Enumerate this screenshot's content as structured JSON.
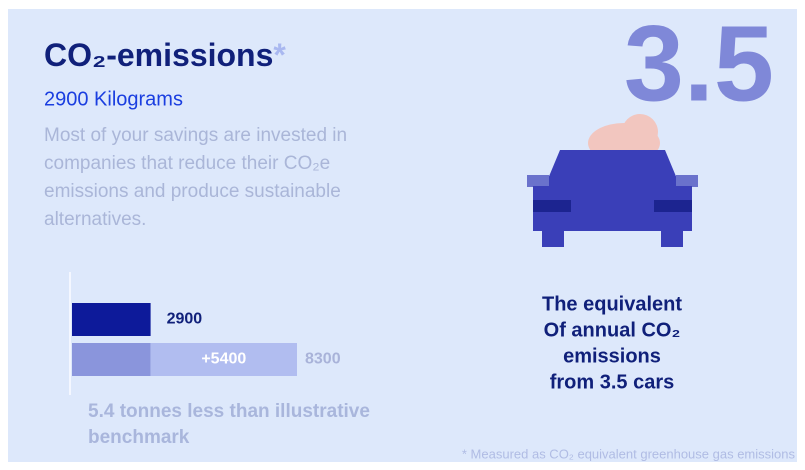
{
  "header": {
    "title": "CO₂-emissions",
    "asterisk": "*",
    "subtitle": "2900 Kilograms",
    "description": [
      "Most of your savings are invested in",
      "companies that reduce their CO₂e",
      "emissions and produce sustainable",
      "alternatives."
    ]
  },
  "highlight": "3.5",
  "equivalent": [
    "The equivalent",
    "Of annual CO₂",
    "emissions",
    "from 3.5 cars"
  ],
  "chart_data": {
    "type": "stacked-bar",
    "values": [
      [
        2900
      ],
      [
        2900,
        5400
      ]
    ],
    "value_labels": [
      [
        "2900"
      ],
      [
        null,
        "+5400"
      ]
    ],
    "colors": [
      [
        "#0d1a9a"
      ],
      [
        "#8a95dc",
        "#b1bdf0"
      ]
    ],
    "total": 8300
  },
  "note": [
    "5.4 tonnes less than illustrative",
    "benchmark"
  ],
  "footnote": "* Measured as CO₂ equivalent greenhouse gas emissions"
}
